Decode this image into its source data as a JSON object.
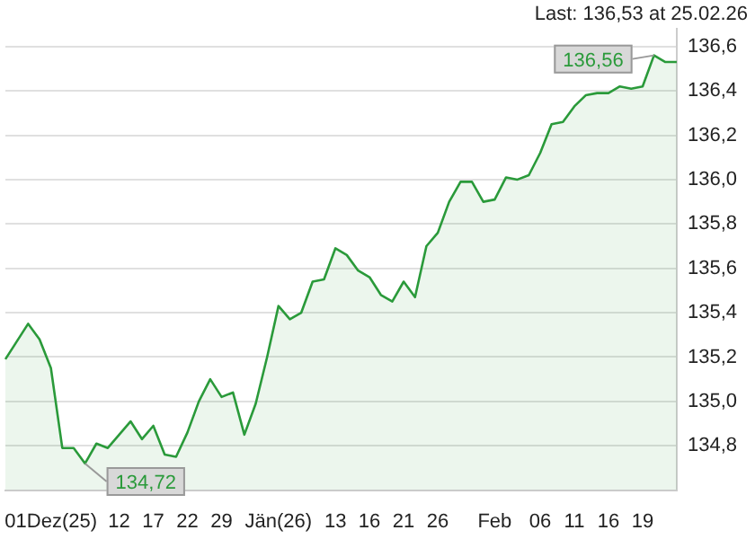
{
  "chart_data": {
    "type": "area",
    "color": "#2a9a3a",
    "categories": [
      null,
      null,
      null,
      null,
      "01Dez(25)",
      null,
      null,
      null,
      null,
      null,
      "12",
      null,
      null,
      "17",
      null,
      null,
      "22",
      null,
      null,
      "29",
      null,
      null,
      null,
      null,
      "Jän(26)",
      null,
      null,
      null,
      null,
      "13",
      null,
      null,
      "16",
      null,
      null,
      "21",
      null,
      null,
      "26",
      null,
      null,
      null,
      null,
      "Feb",
      null,
      null,
      null,
      "06",
      null,
      null,
      "11",
      null,
      null,
      "16",
      null,
      null,
      "19",
      null,
      null,
      null
    ],
    "values": [
      135.19,
      135.27,
      135.35,
      135.28,
      135.15,
      134.79,
      134.79,
      134.72,
      134.81,
      134.79,
      134.85,
      134.91,
      134.83,
      134.89,
      134.76,
      134.75,
      134.86,
      135.0,
      135.1,
      135.02,
      135.04,
      134.85,
      134.99,
      135.2,
      135.43,
      135.37,
      135.4,
      135.54,
      135.55,
      135.69,
      135.66,
      135.59,
      135.56,
      135.48,
      135.45,
      135.54,
      135.47,
      135.7,
      135.76,
      135.9,
      135.99,
      135.99,
      135.9,
      135.91,
      136.01,
      136.0,
      136.02,
      136.12,
      136.25,
      136.26,
      136.33,
      136.38,
      136.39,
      136.39,
      136.42,
      136.41,
      136.42,
      136.56,
      136.53,
      136.53
    ],
    "ylim": [
      134.6,
      136.68
    ],
    "yticks": [
      {
        "value": 134.8,
        "label": "134,8"
      },
      {
        "value": 135.0,
        "label": "135,0"
      },
      {
        "value": 135.2,
        "label": "135,2"
      },
      {
        "value": 135.4,
        "label": "135,4"
      },
      {
        "value": 135.6,
        "label": "135,6"
      },
      {
        "value": 135.8,
        "label": "135,8"
      },
      {
        "value": 136.0,
        "label": "136,0"
      },
      {
        "value": 136.2,
        "label": "136,2"
      },
      {
        "value": 136.4,
        "label": "136,4"
      },
      {
        "value": 136.6,
        "label": "136,6"
      }
    ],
    "grid": "y",
    "legend": false,
    "marker": "none",
    "line_style": "solid",
    "annotations": [
      "Last: 136,53 at 25.02.26",
      "136,56",
      "134,72"
    ]
  }
}
